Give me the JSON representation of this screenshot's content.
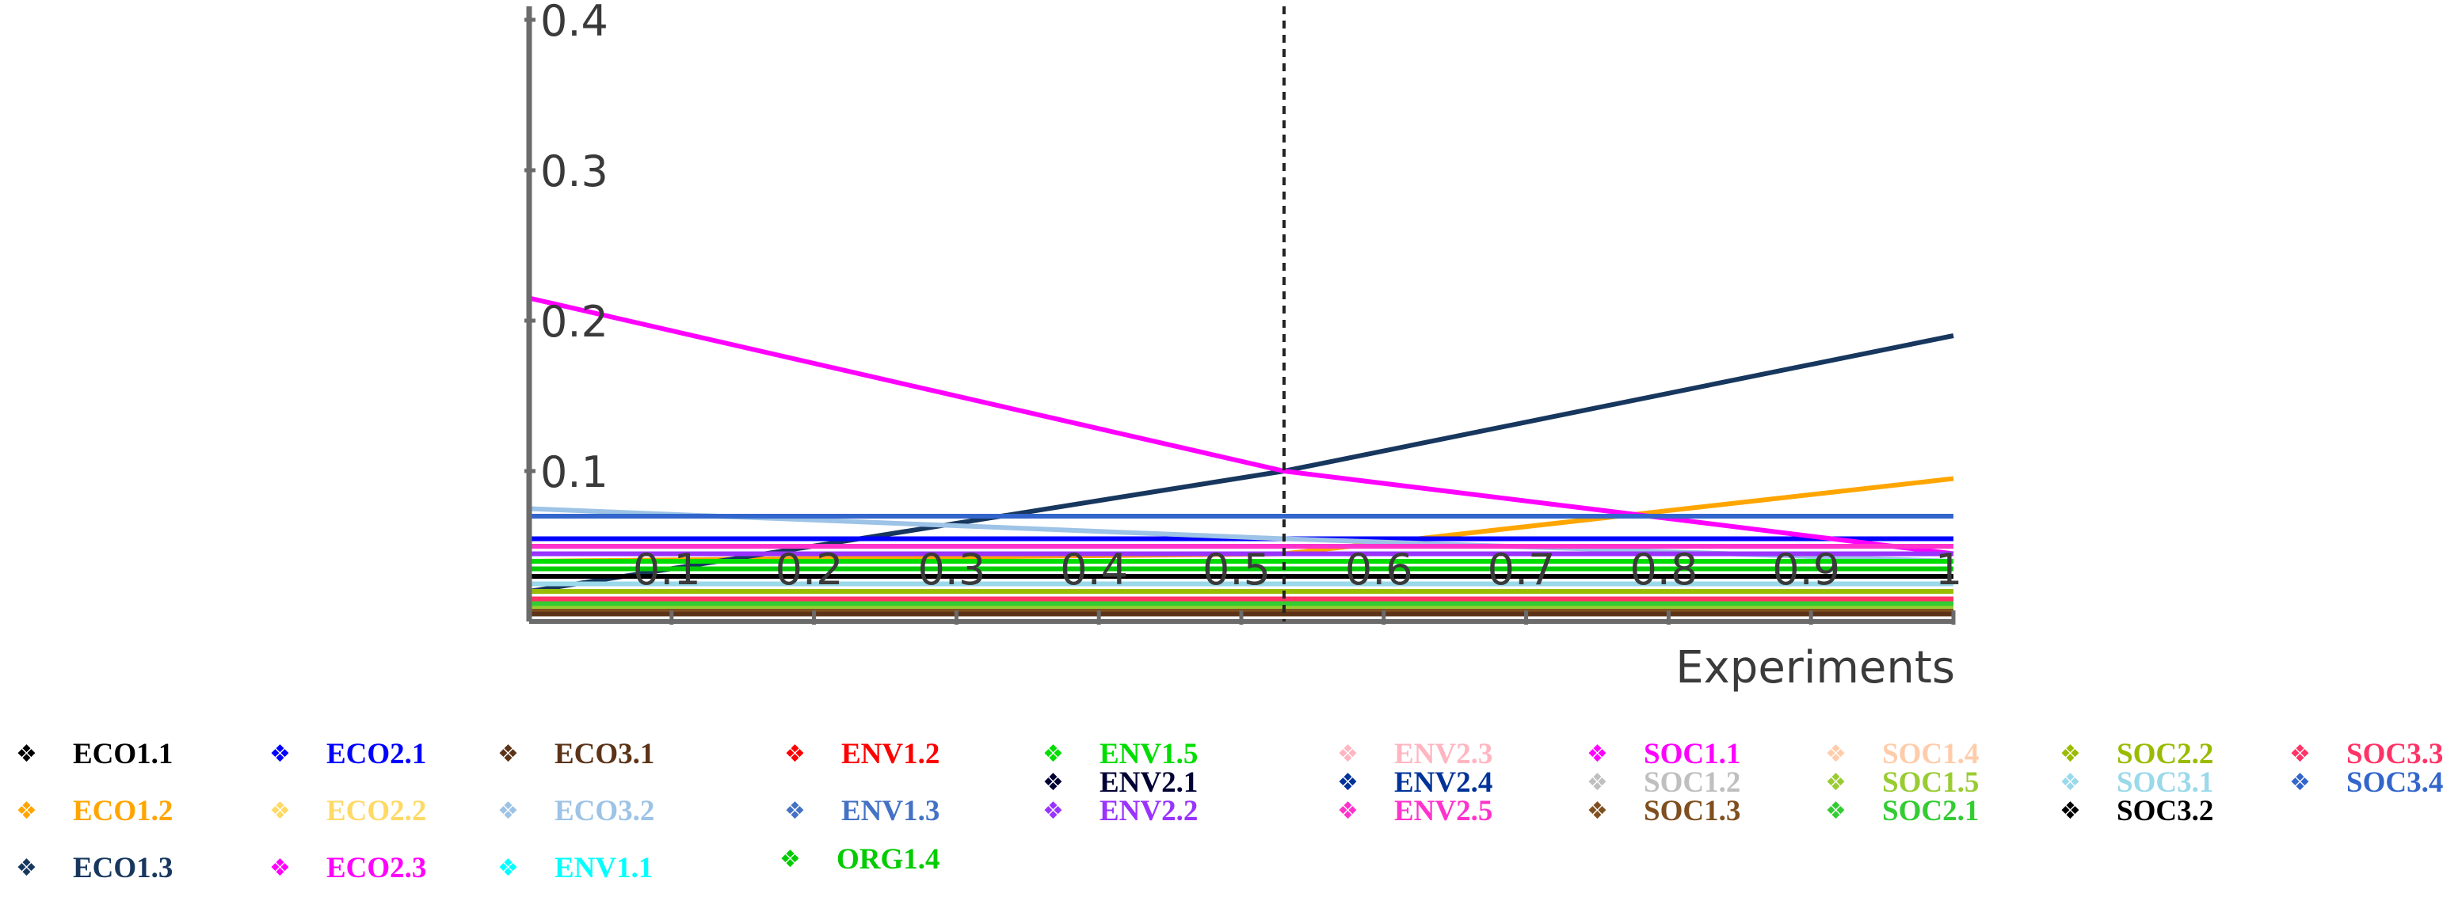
{
  "chart_data": {
    "type": "line",
    "xlabel": "Experiments",
    "ylabel": "",
    "xlim": [
      0,
      1
    ],
    "ylim": [
      0,
      0.4
    ],
    "x_ticks": [
      "0.1",
      "0.2",
      "0.3",
      "0.4",
      "0.5",
      "0.6",
      "0.7",
      "0.8",
      "0.9",
      "1"
    ],
    "y_ticks": [
      "0.1",
      "0.2",
      "0.3",
      "0.4"
    ],
    "reference_line": {
      "x": 0.53,
      "style": "dashed",
      "color": "#222222"
    },
    "grid": false,
    "legend_position": "bottom",
    "x": [
      0,
      0.53,
      1
    ],
    "series": [
      {
        "name": "ECO1.1",
        "color": "#000000",
        "values": [
          0.012,
          0.012,
          0.012
        ]
      },
      {
        "name": "ECO1.2",
        "color": "#FFA500",
        "values": [
          0.04,
          0.045,
          0.095
        ]
      },
      {
        "name": "ECO1.3",
        "color": "#17375E",
        "values": [
          0.02,
          0.1,
          0.19
        ]
      },
      {
        "name": "ECO2.1",
        "color": "#0000FF",
        "values": [
          0.055,
          0.055,
          0.055
        ]
      },
      {
        "name": "ECO2.2",
        "color": "#FFD966",
        "values": [
          0.05,
          0.05,
          0.05
        ]
      },
      {
        "name": "ECO2.3",
        "color": "#FF00FF",
        "values": [
          0.215,
          0.1,
          0.045
        ]
      },
      {
        "name": "ECO3.1",
        "color": "#5C3317",
        "values": [
          0.005,
          0.005,
          0.005
        ]
      },
      {
        "name": "ECO3.2",
        "color": "#9DC3E6",
        "values": [
          0.075,
          0.055,
          0.04
        ]
      },
      {
        "name": "ENV1.1",
        "color": "#00FFFF",
        "values": [
          0.02,
          0.02,
          0.02
        ]
      },
      {
        "name": "ENV1.2",
        "color": "#FF0000",
        "values": [
          0.03,
          0.03,
          0.03
        ]
      },
      {
        "name": "ENV1.3",
        "color": "#4472C4",
        "values": [
          0.07,
          0.07,
          0.07
        ]
      },
      {
        "name": "ORG1.4",
        "color": "#00CC00",
        "values": [
          0.035,
          0.035,
          0.035
        ]
      },
      {
        "name": "ENV1.5",
        "color": "#00DD00",
        "values": [
          0.04,
          0.04,
          0.04
        ]
      },
      {
        "name": "ENV2.1",
        "color": "#000033",
        "values": [
          0.025,
          0.025,
          0.025
        ]
      },
      {
        "name": "ENV2.2",
        "color": "#9933FF",
        "values": [
          0.045,
          0.045,
          0.045
        ]
      },
      {
        "name": "ENV2.3",
        "color": "#FFB6C1",
        "values": [
          0.01,
          0.01,
          0.01
        ]
      },
      {
        "name": "ENV2.4",
        "color": "#003399",
        "values": [
          0.015,
          0.015,
          0.015
        ]
      },
      {
        "name": "ENV2.5",
        "color": "#FF33CC",
        "values": [
          0.05,
          0.05,
          0.05
        ]
      },
      {
        "name": "SOC1.1",
        "color": "#FF00FF",
        "values": [
          0.03,
          0.03,
          0.03
        ]
      },
      {
        "name": "SOC1.2",
        "color": "#BFBFBF",
        "values": [
          0.02,
          0.02,
          0.02
        ]
      },
      {
        "name": "SOC1.3",
        "color": "#7F4F1F",
        "values": [
          0.008,
          0.008,
          0.008
        ]
      },
      {
        "name": "SOC1.4",
        "color": "#FFCCAA",
        "values": [
          0.015,
          0.015,
          0.015
        ]
      },
      {
        "name": "SOC1.5",
        "color": "#99CC33",
        "values": [
          0.01,
          0.01,
          0.01
        ]
      },
      {
        "name": "SOC2.1",
        "color": "#33CC33",
        "values": [
          0.012,
          0.012,
          0.012
        ]
      },
      {
        "name": "SOC2.2",
        "color": "#99BB00",
        "values": [
          0.02,
          0.02,
          0.02
        ]
      },
      {
        "name": "SOC3.1",
        "color": "#99D9EA",
        "values": [
          0.025,
          0.025,
          0.025
        ]
      },
      {
        "name": "SOC3.2",
        "color": "#000000",
        "values": [
          0.03,
          0.03,
          0.03
        ]
      },
      {
        "name": "SOC3.3",
        "color": "#FF3366",
        "values": [
          0.015,
          0.015,
          0.015
        ]
      },
      {
        "name": "SOC3.4",
        "color": "#3366CC",
        "values": [
          0.07,
          0.07,
          0.07
        ]
      }
    ]
  },
  "legend_marker_symbol": "❖"
}
